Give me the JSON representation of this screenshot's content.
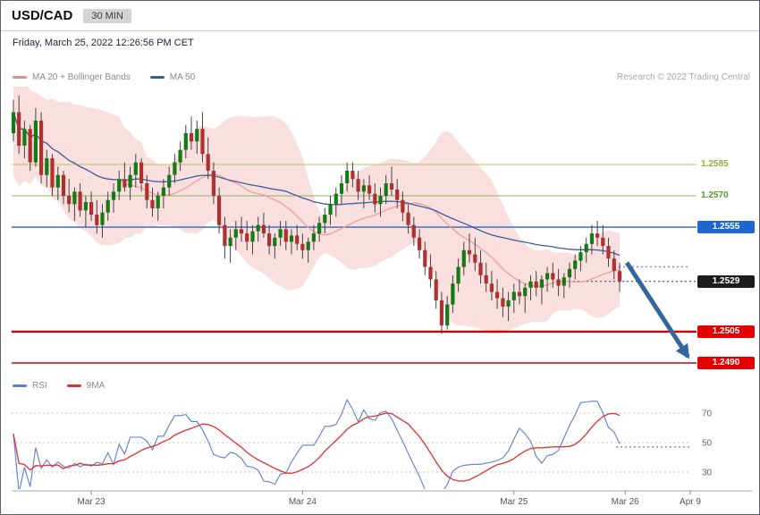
{
  "header": {
    "symbol": "USD/CAD",
    "timeframe": "30 MIN",
    "datetime": "Friday, March 25, 2022 12:26:56 PM CET"
  },
  "legend": {
    "ma_bb": "MA 20 + Bollinger Bands",
    "ma50": "MA 50",
    "research": "Research © 2022 Trading Central"
  },
  "rsi_legend": {
    "rsi": "RSI",
    "ma": "9MA"
  },
  "colors": {
    "candle_up": "#147a14",
    "candle_down": "#b03030",
    "bollinger_fill": "#f7caca",
    "ma20": "#ef9e9e",
    "ma50": "#3a5fa0",
    "rsi_line": "#5b7fd0",
    "rsi_ma": "#e03030",
    "support_red": "#d40000",
    "pivot_blue": "#1f66cf"
  },
  "chart_data": {
    "type": "candlestick",
    "title": "USD/CAD 30 MIN",
    "main": {
      "ylim": [
        1.2478,
        1.2628
      ],
      "overlays": [
        "MA 20 + Bollinger Bands",
        "MA 50"
      ],
      "candles": [
        [
          1.26,
          1.2616,
          1.2596,
          1.261
        ],
        [
          1.261,
          1.2618,
          1.259,
          1.2594
        ],
        [
          1.2594,
          1.2606,
          1.2588,
          1.2602
        ],
        [
          1.2602,
          1.2604,
          1.2582,
          1.2586
        ],
        [
          1.2586,
          1.2612,
          1.2584,
          1.2606
        ],
        [
          1.2606,
          1.261,
          1.2576,
          1.258
        ],
        [
          1.258,
          1.2592,
          1.2574,
          1.2588
        ],
        [
          1.2588,
          1.259,
          1.257,
          1.2574
        ],
        [
          1.2574,
          1.2584,
          1.2568,
          1.258
        ],
        [
          1.258,
          1.2582,
          1.2566,
          1.257
        ],
        [
          1.257,
          1.2578,
          1.2562,
          1.2566
        ],
        [
          1.2566,
          1.2574,
          1.2558,
          1.2572
        ],
        [
          1.2572,
          1.2576,
          1.256,
          1.2563
        ],
        [
          1.2563,
          1.257,
          1.2555,
          1.2567
        ],
        [
          1.2567,
          1.2572,
          1.2558,
          1.2561
        ],
        [
          1.2561,
          1.2568,
          1.2552,
          1.2556
        ],
        [
          1.2556,
          1.2566,
          1.255,
          1.2562
        ],
        [
          1.2562,
          1.2572,
          1.2558,
          1.2568
        ],
        [
          1.2568,
          1.2576,
          1.2562,
          1.2572
        ],
        [
          1.2572,
          1.2582,
          1.2568,
          1.2578
        ],
        [
          1.2578,
          1.2586,
          1.2572,
          1.2574
        ],
        [
          1.2574,
          1.2584,
          1.2568,
          1.258
        ],
        [
          1.258,
          1.259,
          1.2574,
          1.2586
        ],
        [
          1.2586,
          1.2588,
          1.2572,
          1.2576
        ],
        [
          1.2576,
          1.258,
          1.2564,
          1.2568
        ],
        [
          1.2568,
          1.2574,
          1.256,
          1.2564
        ],
        [
          1.2564,
          1.2572,
          1.2558,
          1.257
        ],
        [
          1.257,
          1.2578,
          1.2564,
          1.2574
        ],
        [
          1.2574,
          1.2584,
          1.257,
          1.258
        ],
        [
          1.258,
          1.259,
          1.2576,
          1.2586
        ],
        [
          1.2586,
          1.2596,
          1.2582,
          1.2592
        ],
        [
          1.2592,
          1.2604,
          1.2588,
          1.26
        ],
        [
          1.26,
          1.2608,
          1.2592,
          1.2596
        ],
        [
          1.2596,
          1.2606,
          1.259,
          1.2602
        ],
        [
          1.2602,
          1.261,
          1.2586,
          1.259
        ],
        [
          1.259,
          1.2598,
          1.2578,
          1.2582
        ],
        [
          1.2582,
          1.2586,
          1.2566,
          1.257
        ],
        [
          1.257,
          1.2574,
          1.2552,
          1.2556
        ],
        [
          1.2556,
          1.256,
          1.254,
          1.2546
        ],
        [
          1.2546,
          1.2554,
          1.2538,
          1.255
        ],
        [
          1.255,
          1.2558,
          1.2544,
          1.2554
        ],
        [
          1.2554,
          1.256,
          1.2548,
          1.2552
        ],
        [
          1.2552,
          1.2558,
          1.2544,
          1.2548
        ],
        [
          1.2548,
          1.2556,
          1.2542,
          1.2553
        ],
        [
          1.2553,
          1.256,
          1.2548,
          1.2556
        ],
        [
          1.2556,
          1.2562,
          1.255,
          1.2552
        ],
        [
          1.2552,
          1.2556,
          1.2542,
          1.2546
        ],
        [
          1.2546,
          1.2552,
          1.254,
          1.255
        ],
        [
          1.255,
          1.2558,
          1.2546,
          1.2554
        ],
        [
          1.2554,
          1.2558,
          1.2544,
          1.2548
        ],
        [
          1.2548,
          1.2554,
          1.2542,
          1.2551
        ],
        [
          1.2551,
          1.2556,
          1.2544,
          1.2547
        ],
        [
          1.2547,
          1.2552,
          1.254,
          1.2544
        ],
        [
          1.2544,
          1.255,
          1.2538,
          1.2548
        ],
        [
          1.2548,
          1.2556,
          1.2544,
          1.2552
        ],
        [
          1.2552,
          1.256,
          1.2548,
          1.2557
        ],
        [
          1.2557,
          1.2564,
          1.2552,
          1.2561
        ],
        [
          1.2561,
          1.257,
          1.2556,
          1.2566
        ],
        [
          1.2566,
          1.2574,
          1.256,
          1.2571
        ],
        [
          1.2571,
          1.258,
          1.2566,
          1.2576
        ],
        [
          1.2576,
          1.2586,
          1.2572,
          1.2582
        ],
        [
          1.2582,
          1.2586,
          1.2574,
          1.2578
        ],
        [
          1.2578,
          1.2582,
          1.2568,
          1.2572
        ],
        [
          1.2572,
          1.2578,
          1.2564,
          1.2575
        ],
        [
          1.2575,
          1.258,
          1.2568,
          1.2571
        ],
        [
          1.2571,
          1.2576,
          1.2562,
          1.2566
        ],
        [
          1.2566,
          1.2574,
          1.256,
          1.257
        ],
        [
          1.257,
          1.258,
          1.2566,
          1.2576
        ],
        [
          1.2576,
          1.2584,
          1.257,
          1.2573
        ],
        [
          1.2573,
          1.2578,
          1.2564,
          1.2568
        ],
        [
          1.2568,
          1.2572,
          1.2558,
          1.2562
        ],
        [
          1.2562,
          1.2566,
          1.2552,
          1.2556
        ],
        [
          1.2556,
          1.256,
          1.2546,
          1.255
        ],
        [
          1.255,
          1.2554,
          1.254,
          1.2544
        ],
        [
          1.2544,
          1.2548,
          1.2532,
          1.2536
        ],
        [
          1.2536,
          1.2542,
          1.2526,
          1.253
        ],
        [
          1.253,
          1.2534,
          1.2516,
          1.252
        ],
        [
          1.252,
          1.2524,
          1.2504,
          1.2508
        ],
        [
          1.2508,
          1.2522,
          1.2506,
          1.2518
        ],
        [
          1.2518,
          1.2532,
          1.2514,
          1.2528
        ],
        [
          1.2528,
          1.254,
          1.2524,
          1.2536
        ],
        [
          1.2536,
          1.2548,
          1.2532,
          1.2544
        ],
        [
          1.2544,
          1.2552,
          1.2538,
          1.2542
        ],
        [
          1.2542,
          1.255,
          1.2534,
          1.2538
        ],
        [
          1.2538,
          1.2544,
          1.2528,
          1.2532
        ],
        [
          1.2532,
          1.2538,
          1.2524,
          1.2528
        ],
        [
          1.2528,
          1.2534,
          1.252,
          1.2524
        ],
        [
          1.2524,
          1.253,
          1.2516,
          1.2521
        ],
        [
          1.2521,
          1.2526,
          1.2512,
          1.2517
        ],
        [
          1.2517,
          1.2524,
          1.251,
          1.252
        ],
        [
          1.252,
          1.2528,
          1.2514,
          1.2524
        ],
        [
          1.2524,
          1.253,
          1.2518,
          1.2522
        ],
        [
          1.2522,
          1.2528,
          1.2514,
          1.2526
        ],
        [
          1.2526,
          1.2532,
          1.252,
          1.2529
        ],
        [
          1.2529,
          1.2534,
          1.2522,
          1.2526
        ],
        [
          1.2526,
          1.2532,
          1.2518,
          1.253
        ],
        [
          1.253,
          1.2536,
          1.2524,
          1.2533
        ],
        [
          1.2533,
          1.2538,
          1.2526,
          1.253
        ],
        [
          1.253,
          1.2535,
          1.2522,
          1.2527
        ],
        [
          1.2527,
          1.2533,
          1.2521,
          1.2531
        ],
        [
          1.2531,
          1.2538,
          1.2526,
          1.2535
        ],
        [
          1.2535,
          1.2542,
          1.253,
          1.2539
        ],
        [
          1.2539,
          1.2546,
          1.2534,
          1.2543
        ],
        [
          1.2543,
          1.255,
          1.2538,
          1.2547
        ],
        [
          1.2547,
          1.2556,
          1.2542,
          1.2552
        ],
        [
          1.2552,
          1.2558,
          1.2546,
          1.255
        ],
        [
          1.255,
          1.2556,
          1.2542,
          1.2546
        ],
        [
          1.2546,
          1.255,
          1.2536,
          1.254
        ],
        [
          1.254,
          1.2544,
          1.253,
          1.2534
        ],
        [
          1.2534,
          1.2538,
          1.2524,
          1.2529
        ]
      ],
      "levels": [
        {
          "label": "1.2585",
          "value": 1.2585,
          "style": "text",
          "color": "#9ba63c",
          "line_color": "#b9c46a",
          "line_width": 1,
          "dash": null,
          "span": "full"
        },
        {
          "label": "1.2570",
          "value": 1.257,
          "style": "text",
          "color": "#55982f",
          "line_color": "#86b95e",
          "line_width": 1,
          "dash": null,
          "span": "full"
        },
        {
          "label": "1.2555",
          "value": 1.2555,
          "style": "chip",
          "color": "#1f66cf",
          "line_color": "#4b79c6",
          "line_width": 1.6,
          "dash": null,
          "span": "full"
        },
        {
          "label": "1.2529",
          "value": 1.2529,
          "style": "chip",
          "color": "#1c1c1c",
          "line_color": "#333333",
          "line_width": 1,
          "dash": "2,3",
          "span": "right"
        },
        {
          "label": "1.2505",
          "value": 1.2505,
          "style": "chip",
          "color": "#e40000",
          "line_color": "#d40000",
          "line_width": 2.4,
          "dash": null,
          "span": "full"
        },
        {
          "label": "1.2490",
          "value": 1.249,
          "style": "chip",
          "color": "#e40000",
          "line_color": "#d40000",
          "line_width": 1.6,
          "dash": null,
          "span": "full"
        }
      ],
      "dotted_guides": [
        {
          "value": 1.2536,
          "color": "#8686e0"
        }
      ],
      "arrow": {
        "from_i": 110.3,
        "from_price": 1.2538,
        "to_i": 121.3,
        "to_price": 1.2493,
        "color": "#33669b",
        "meaning": "bearish projection toward 1.2490"
      }
    },
    "rsi": {
      "label": "RSI",
      "ma_label": "9MA",
      "period": 14,
      "axis": [
        70,
        50,
        30
      ],
      "guide": 47,
      "ylim": [
        15,
        85
      ]
    },
    "x_ticks": [
      {
        "label": "Mar 23",
        "i": 14
      },
      {
        "label": "Mar 24",
        "i": 52
      },
      {
        "label": "Mar 25",
        "i": 90
      },
      {
        "label": "Mar 26",
        "i": 110
      },
      {
        "label": "Apr 9",
        "i": 121.7
      }
    ]
  }
}
